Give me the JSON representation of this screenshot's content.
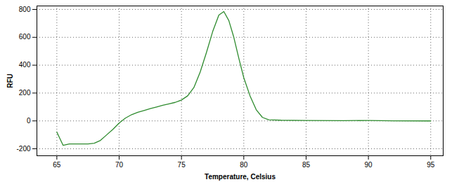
{
  "chart_data": {
    "type": "line",
    "x_label": "Temperature, Celsius",
    "y_label": "RFU",
    "color": "#2e8b2e",
    "grid": true,
    "xlim": [
      63.4,
      96
    ],
    "xticks": [
      65,
      70,
      75,
      80,
      85,
      90,
      95
    ],
    "ylim": [
      -250,
      825
    ],
    "yticks": [
      -200,
      0,
      200,
      400,
      600,
      800
    ],
    "x": [
      65.0,
      65.5,
      66.0,
      67.0,
      67.5,
      68.0,
      68.5,
      69.0,
      69.5,
      70.0,
      70.5,
      71.0,
      71.5,
      72.0,
      72.5,
      73.0,
      73.5,
      74.0,
      74.5,
      75.0,
      75.5,
      76.0,
      76.5,
      77.0,
      77.5,
      78.0,
      78.4,
      78.8,
      79.2,
      79.6,
      80.0,
      80.5,
      81.0,
      81.5,
      82.0,
      83.0,
      85.0,
      88.0,
      90.0,
      92.0,
      95.0
    ],
    "values": [
      -80,
      -175,
      -165,
      -165,
      -165,
      -160,
      -140,
      -100,
      -60,
      -15,
      20,
      45,
      62,
      75,
      88,
      100,
      112,
      122,
      133,
      150,
      180,
      240,
      350,
      490,
      640,
      760,
      785,
      720,
      600,
      450,
      310,
      180,
      80,
      25,
      8,
      5,
      3,
      2,
      3,
      1,
      0
    ]
  }
}
